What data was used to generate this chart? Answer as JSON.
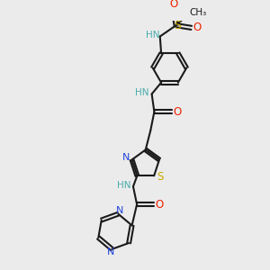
{
  "background_color": "#ebebeb",
  "bond_color": "#1a1a1a",
  "n_color": "#2244dd",
  "s_color": "#ccaa00",
  "o_color": "#ee2200",
  "h_color": "#4aacac",
  "figsize": [
    3.0,
    3.0
  ],
  "dpi": 100,
  "xlim": [
    0,
    10
  ],
  "ylim": [
    0,
    10
  ]
}
